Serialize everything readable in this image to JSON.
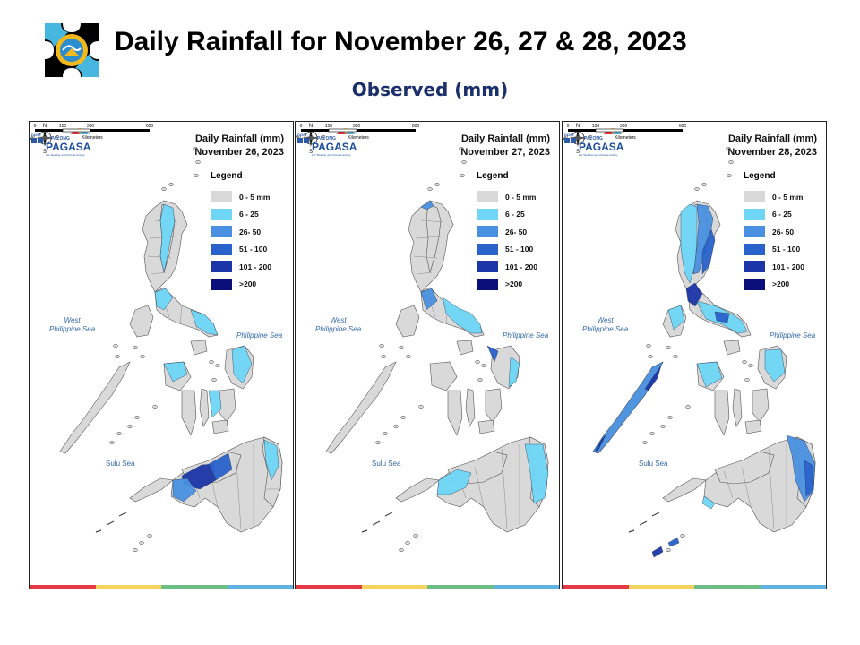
{
  "header": {
    "title": "Daily Rainfall for November 26, 27 & 28, 2023",
    "subtitle": "Observed (mm)"
  },
  "legend": {
    "title": "Legend",
    "items": [
      {
        "label": "0 - 5 mm",
        "color": "#d9d9d9"
      },
      {
        "label": "6 - 25",
        "color": "#6fd6f7"
      },
      {
        "label": "26- 50",
        "color": "#4a90e0"
      },
      {
        "label": "51 - 100",
        "color": "#2a62cc"
      },
      {
        "label": "101 - 200",
        "color": "#1c36a8"
      },
      {
        "label": ">200",
        "color": "#0b0f7a"
      }
    ]
  },
  "panels": [
    {
      "title_line1": "Daily Rainfall (mm)",
      "title_line2": "November 26, 2023"
    },
    {
      "title_line1": "Daily Rainfall (mm)",
      "title_line2": "November 27, 2023"
    },
    {
      "title_line1": "Daily Rainfall (mm)",
      "title_line2": "November 28, 2023"
    }
  ],
  "map_labels": {
    "west_sea": "West\nPhilippine Sea",
    "philippine_sea": "Philippine Sea",
    "sulu_sea": "Sulu Sea",
    "compass_n": "N",
    "compass_s": "S",
    "compass_e": "E",
    "compass_w": "W"
  },
  "scale_bar": {
    "ticks": [
      "0",
      "150",
      "300",
      "600"
    ],
    "unit": "Kilometers"
  },
  "brand": {
    "dost": "DOST",
    "payong": "PAYONG",
    "name": "PAGASA",
    "tagline": "For Weather and Climate Activity"
  },
  "colors": {
    "land": "#d9d9d9",
    "bar": [
      "#e63946",
      "#f4d35e",
      "#6cbf84",
      "#5fb3e0"
    ]
  }
}
